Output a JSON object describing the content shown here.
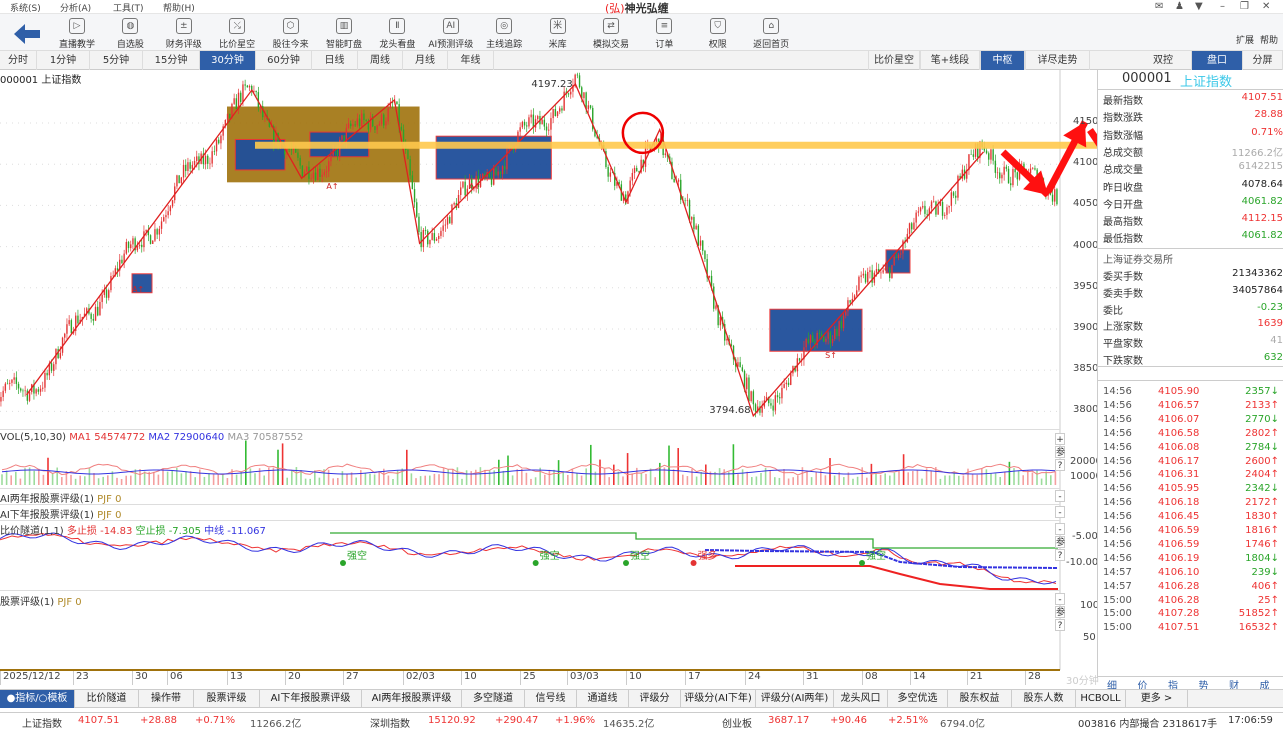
{
  "menu": [
    "系统(S)",
    "分析(A)",
    "工具(T)",
    "帮助(H)"
  ],
  "app_title": "神光弘缠",
  "app_logo": "弘",
  "window_icons": [
    "mail-icon",
    "user-icon",
    "skin-icon",
    "minimize-icon",
    "restore-icon",
    "close-icon"
  ],
  "toolbar": {
    "items": [
      {
        "label": "直播教学",
        "icon": "play-icon",
        "glyph": "▷"
      },
      {
        "label": "自选股",
        "icon": "pie-icon",
        "glyph": "◍"
      },
      {
        "label": "财务评级",
        "icon": "finance-icon",
        "glyph": "±"
      },
      {
        "label": "比价星空",
        "icon": "chart-icon",
        "glyph": "⤯"
      },
      {
        "label": "股往今来",
        "icon": "cube-icon",
        "glyph": "⬡"
      },
      {
        "label": "智能盯盘",
        "icon": "monitor-icon",
        "glyph": "▥"
      },
      {
        "label": "龙头看盘",
        "icon": "dragon-icon",
        "glyph": "Ⅱ"
      },
      {
        "label": "AI预测评级",
        "icon": "ai-icon",
        "glyph": "AI"
      },
      {
        "label": "主线追踪",
        "icon": "target-icon",
        "glyph": "◎"
      },
      {
        "label": "米库",
        "icon": "rice-icon",
        "glyph": "米"
      },
      {
        "label": "模拟交易",
        "icon": "exchange-icon",
        "glyph": "⇄"
      },
      {
        "label": "订单",
        "icon": "document-icon",
        "glyph": "≡"
      },
      {
        "label": "权限",
        "icon": "shield-icon",
        "glyph": "⛉"
      },
      {
        "label": "返回首页",
        "icon": "home-icon",
        "glyph": "⌂"
      }
    ],
    "extend": "扩展",
    "help": "帮助"
  },
  "periods": [
    "分时",
    "1分钟",
    "5分钟",
    "15分钟",
    "30分钟",
    "60分钟",
    "日线",
    "周线",
    "月线",
    "年线"
  ],
  "active_period": "30分钟",
  "chart_modes": [
    "比价星空",
    "笔+线段",
    "中枢",
    "详尽走势"
  ],
  "active_mode": "中枢",
  "right_tabs": [
    "双控",
    "盘口",
    "分屏"
  ],
  "active_right_tab": "盘口",
  "chart_title": "000001 上证指数",
  "colors": {
    "accent": "#2f5fa8",
    "up": "#e33333",
    "down": "#2aa52a",
    "zigzag": "#e02020",
    "box_blue": "#1f4f9a",
    "box_brown": "#a0720c",
    "annotation_yellow": "#ffc94d",
    "annotation_red": "#ff1010"
  },
  "chart_data": [
    {
      "type": "candlestick",
      "title": "000001 上证指数",
      "ylim": [
        3780,
        4190
      ],
      "yticks": [
        "4150",
        "4100",
        "4050",
        "4000",
        "3950",
        "3900",
        "3850",
        "3800"
      ],
      "xticks": [
        "2025/12/12",
        "23",
        "30",
        "06",
        "13",
        "20",
        "27",
        "02/03",
        "10",
        "25",
        "03/03",
        "10",
        "17",
        "24",
        "31",
        "08",
        "14",
        "21",
        "28"
      ],
      "xaxis_unit": "30分钟",
      "pivots": [
        {
          "date": "2025-12-16",
          "price": 3820
        },
        {
          "date": "2026-01-16",
          "price": 4190
        },
        {
          "date": "2026-01-22",
          "price": 4083
        },
        {
          "date": "2026-02-02",
          "price": 4178
        },
        {
          "date": "2026-02-05",
          "price": 4004
        },
        {
          "date": "2026-03-04",
          "price": 4197.23
        },
        {
          "date": "2026-03-10",
          "price": 4054
        },
        {
          "date": "2026-03-14",
          "price": 4142
        },
        {
          "date": "2026-03-25",
          "price": 3794.68
        },
        {
          "date": "2026-04-23",
          "price": 4115
        },
        {
          "date": "2026-04-30",
          "price": 4070
        }
      ],
      "labels": [
        {
          "text": "4197.23",
          "date": "2026-03-04",
          "price": 4197.23
        },
        {
          "text": "3794.68",
          "date": "2026-03-25",
          "price": 3794.68
        }
      ],
      "signals": [
        {
          "text": "A↑",
          "date": "2025-12-30",
          "price": 3945
        },
        {
          "text": "A↑",
          "date": "2026-01-25",
          "price": 4070
        },
        {
          "text": "A↑",
          "date": "2026-02-12",
          "price": 4070
        },
        {
          "text": "S↑",
          "date": "2026-04-03",
          "price": 3865
        }
      ],
      "zones": [
        {
          "kind": "brown",
          "from": "2026-01-13",
          "to": "2026-02-05",
          "high": 4170,
          "low": 4078
        },
        {
          "kind": "blue",
          "from": "2026-01-14",
          "to": "2026-01-20",
          "high": 4130,
          "low": 4093
        },
        {
          "kind": "blue",
          "from": "2026-01-23",
          "to": "2026-01-30",
          "high": 4139,
          "low": 4109
        },
        {
          "kind": "blue",
          "from": "2026-02-07",
          "to": "2026-03-01",
          "high": 4134,
          "low": 4082
        },
        {
          "kind": "blue",
          "from": "2025-12-30",
          "to": "2026-01-03",
          "high": 3967,
          "low": 3944
        },
        {
          "kind": "blue",
          "from": "2026-03-27",
          "to": "2026-04-08",
          "high": 3924,
          "low": 3873
        },
        {
          "kind": "blue",
          "from": "2026-04-11",
          "to": "2026-04-14",
          "high": 3996,
          "low": 3968
        }
      ],
      "annotations": {
        "horizontal_arrow_price": 4123,
        "circle_date": "2026-03-12",
        "circle_price": 4138
      }
    },
    {
      "type": "bar",
      "name": "VOL(5,10,30)",
      "legend": [
        {
          "label": "VOL(5,10,30)",
          "color": "#333"
        },
        {
          "label": "MA1 54574772",
          "color": "#e33333"
        },
        {
          "label": "MA2 72900640",
          "color": "#3333e0"
        },
        {
          "label": "MA3 70587552",
          "color": "#999999"
        }
      ],
      "yticks": [
        "20000",
        "10000"
      ],
      "ylim": [
        0,
        30000
      ]
    },
    {
      "type": "line",
      "legend": [
        {
          "label": "比价隧道(1,1)",
          "color": "#333"
        },
        {
          "label": "多止损 -14.83",
          "color": "#e33333"
        },
        {
          "label": "空止损 -7.305",
          "color": "#2aa52a"
        },
        {
          "label": "中线 -11.067",
          "color": "#3333e0"
        }
      ],
      "yticks": [
        "-5.00",
        "-10.00"
      ],
      "signals": [
        {
          "text": "强空",
          "date": "2026-01-27",
          "color": "#2aa52a"
        },
        {
          "text": "强空",
          "date": "2026-02-27",
          "color": "#2aa52a"
        },
        {
          "text": "强空",
          "date": "2026-03-10",
          "color": "#2aa52a"
        },
        {
          "text": "强多",
          "date": "2026-03-18",
          "color": "#e33333"
        },
        {
          "text": "强空",
          "date": "2026-04-08",
          "color": "#2aa52a"
        }
      ]
    }
  ],
  "indicators": {
    "ai_two_year": {
      "name": "AI两年报股票评级(1)",
      "value": "PJF 0"
    },
    "ai_half_year": {
      "name": "AI下年报股票评级(1)",
      "value": "PJF 0"
    },
    "rating": {
      "name": "股票评级(1)",
      "value": "PJF 0",
      "yticks": [
        "100",
        "50"
      ]
    }
  },
  "side_buttons": {
    "plus": "+",
    "minus": "-",
    "param": "参",
    "help": "?"
  },
  "quote": {
    "code": "000001",
    "name": "上证指数",
    "rows": [
      {
        "k": "最新指数",
        "v": "4107.51",
        "c": "red"
      },
      {
        "k": "指数涨跌",
        "v": "28.88",
        "c": "red"
      },
      {
        "k": "指数涨幅",
        "v": "0.71%",
        "c": "red"
      },
      {
        "k": "总成交额",
        "v": "11266.2亿",
        "c": "gray"
      },
      {
        "k": "总成交量",
        "v": "6142215",
        "c": "gray"
      },
      {
        "k": "昨日收盘",
        "v": "4078.64",
        "c": "blk"
      },
      {
        "k": "今日开盘",
        "v": "4061.82",
        "c": "green"
      },
      {
        "k": "最高指数",
        "v": "4112.15",
        "c": "red"
      },
      {
        "k": "最低指数",
        "v": "4061.82",
        "c": "green"
      }
    ],
    "exchange": "上海证券交易所",
    "rows2": [
      {
        "k": "委买手数",
        "v": "21343362",
        "c": "blk"
      },
      {
        "k": "委卖手数",
        "v": "34057864",
        "c": "blk"
      },
      {
        "k": "委比",
        "v": "-0.23",
        "c": "green"
      },
      {
        "k": "上涨家数",
        "v": "1639",
        "c": "red"
      },
      {
        "k": "平盘家数",
        "v": "41",
        "c": "gray"
      },
      {
        "k": "下跌家数",
        "v": "632",
        "c": "green"
      }
    ]
  },
  "ticks": [
    {
      "t": "14:56",
      "p": "4105.90",
      "q": "2357↓",
      "c": "green"
    },
    {
      "t": "14:56",
      "p": "4106.57",
      "q": "2133↑",
      "c": "red"
    },
    {
      "t": "14:56",
      "p": "4106.07",
      "q": "2770↓",
      "c": "green"
    },
    {
      "t": "14:56",
      "p": "4106.58",
      "q": "2802↑",
      "c": "red"
    },
    {
      "t": "14:56",
      "p": "4106.08",
      "q": "2784↓",
      "c": "green"
    },
    {
      "t": "14:56",
      "p": "4106.17",
      "q": "2600↑",
      "c": "red"
    },
    {
      "t": "14:56",
      "p": "4106.31",
      "q": "2404↑",
      "c": "red"
    },
    {
      "t": "14:56",
      "p": "4105.95",
      "q": "2342↓",
      "c": "green"
    },
    {
      "t": "14:56",
      "p": "4106.18",
      "q": "2172↑",
      "c": "red"
    },
    {
      "t": "14:56",
      "p": "4106.45",
      "q": "1830↑",
      "c": "red"
    },
    {
      "t": "14:56",
      "p": "4106.59",
      "q": "1816↑",
      "c": "red"
    },
    {
      "t": "14:56",
      "p": "4106.59",
      "q": "1746↑",
      "c": "red"
    },
    {
      "t": "14:56",
      "p": "4106.19",
      "q": "1804↓",
      "c": "green"
    },
    {
      "t": "14:57",
      "p": "4106.10",
      "q": "239↓",
      "c": "green"
    },
    {
      "t": "14:57",
      "p": "4106.28",
      "q": "406↑",
      "c": "red"
    },
    {
      "t": "15:00",
      "p": "4106.28",
      "q": "25↑",
      "c": "red"
    },
    {
      "t": "15:00",
      "p": "4107.28",
      "q": "51852↑",
      "c": "red"
    },
    {
      "t": "15:00",
      "p": "4107.51",
      "q": "16532↑",
      "c": "red"
    }
  ],
  "detail_tabs": [
    "细",
    "价",
    "指",
    "势",
    "财",
    "成"
  ],
  "bottom_tabs": [
    "●指标/○模板",
    "比价隧道",
    "操作带",
    "股票评级",
    "AI下年报股票评级",
    "AI两年报股票评级",
    "多空隧道",
    "信号线",
    "通道线",
    "评级分",
    "评级分(AI下年)",
    "评级分(AI两年)",
    "龙头风口",
    "多空优选",
    "股东权益",
    "股东人数",
    "HCBOLL",
    "更多 >"
  ],
  "status": {
    "sh_name": "上证指数",
    "sh_price": "4107.51",
    "sh_chg": "+28.88",
    "sh_pct": "+0.71%",
    "sh_amt": "11266.2亿",
    "sz_name": "深圳指数",
    "sz_price": "15120.92",
    "sz_chg": "+290.47",
    "sz_pct": "+1.96%",
    "sz_amt": "14635.2亿",
    "cy_name": "创业板",
    "cy_price": "3687.17",
    "cy_chg": "+90.46",
    "cy_pct": "+2.51%",
    "cy_amt": "6794.0亿",
    "msg": "003816 内部撮合 2318617手",
    "time": "17:06:59"
  }
}
